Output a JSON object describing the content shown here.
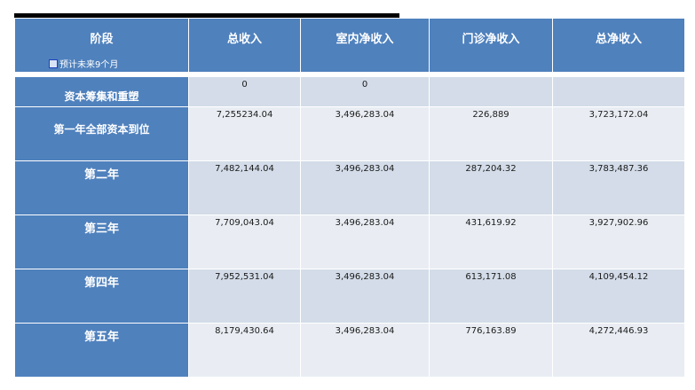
{
  "headers": {
    "stage": "阶段",
    "stage_note": "预计未来9个月",
    "total_revenue": "总收入",
    "inpatient_net": "室内净收入",
    "outpatient_net": "门诊净收入",
    "total_net": "总净收入"
  },
  "rows": [
    {
      "stage": "资本筹集和重塑",
      "total_revenue": "0",
      "inpatient_net": "0",
      "outpatient_net": "",
      "total_net": ""
    },
    {
      "stage": "第一年全部资本到位",
      "total_revenue": "7,255234.04",
      "inpatient_net": "3,496,283.04",
      "outpatient_net": "226,889",
      "total_net": "3,723,172.04"
    },
    {
      "stage": "第二年",
      "total_revenue": "7,482,144.04",
      "inpatient_net": "3,496,283.04",
      "outpatient_net": "287,204.32",
      "total_net": "3,783,487.36"
    },
    {
      "stage": "第三年",
      "total_revenue": "7,709,043.04",
      "inpatient_net": "3,496,283.04",
      "outpatient_net": "431,619.92",
      "total_net": "3,927,902.96"
    },
    {
      "stage": "第四年",
      "total_revenue": "7,952,531.04",
      "inpatient_net": "3,496,283.04",
      "outpatient_net": "613,171.08",
      "total_net": "4,109,454.12"
    },
    {
      "stage": "第五年",
      "total_revenue": "8,179,430.64",
      "inpatient_net": "3,496,283.04",
      "outpatient_net": "776,163.89",
      "total_net": "4,272,446.93"
    }
  ]
}
